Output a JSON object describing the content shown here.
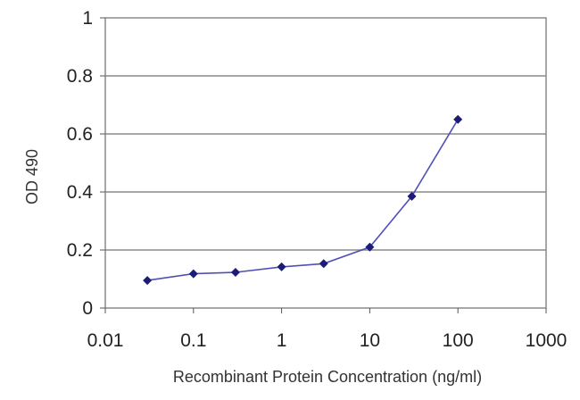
{
  "chart_data": {
    "type": "line",
    "title": "",
    "xlabel": "Recombinant Protein Concentration (ng/ml)",
    "ylabel": "OD 490",
    "x_scale": "log",
    "xlim": [
      0.01,
      1000
    ],
    "ylim": [
      0,
      1
    ],
    "x_ticks": [
      "0.01",
      "0.1",
      "1",
      "10",
      "100",
      "1000"
    ],
    "y_ticks": [
      "0",
      "0.2",
      "0.4",
      "0.6",
      "0.8",
      "1"
    ],
    "grid": "horizontal",
    "legend": "none",
    "series": [
      {
        "x": [
          0.03,
          0.1,
          0.3,
          1,
          3,
          10,
          30,
          100
        ],
        "y": [
          0.095,
          0.118,
          0.123,
          0.142,
          0.153,
          0.21,
          0.385,
          0.65
        ]
      }
    ],
    "colors": {
      "line": "#5050b8",
      "marker": "#1c1c78",
      "grid": "#8a8a8a"
    }
  }
}
